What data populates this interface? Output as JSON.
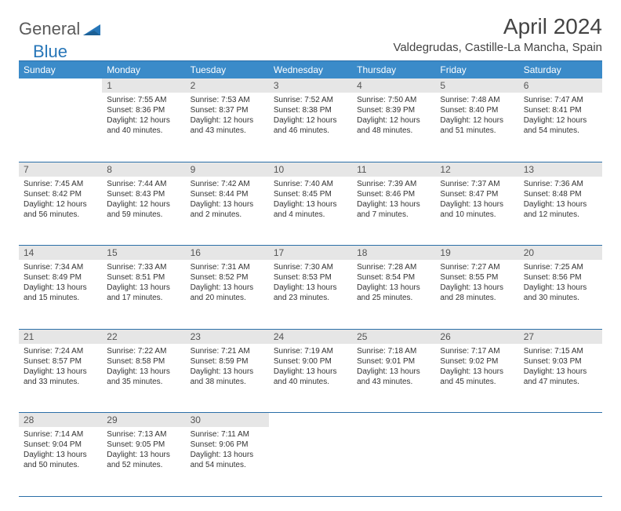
{
  "brand": {
    "part1": "General",
    "part2": "Blue"
  },
  "title": "April 2024",
  "location": "Valdegrudas, Castille-La Mancha, Spain",
  "colors": {
    "header_bg": "#3b8bc9",
    "header_text": "#ffffff",
    "daynum_bg": "#e6e6e6",
    "border": "#2b6fa8",
    "brand_blue": "#2776b8",
    "brand_gray": "#5a5a5a"
  },
  "weekdays": [
    "Sunday",
    "Monday",
    "Tuesday",
    "Wednesday",
    "Thursday",
    "Friday",
    "Saturday"
  ],
  "weeks": [
    [
      {
        "n": "",
        "sunrise": "",
        "sunset": "",
        "daylight": ""
      },
      {
        "n": "1",
        "sunrise": "7:55 AM",
        "sunset": "8:36 PM",
        "daylight": "12 hours and 40 minutes."
      },
      {
        "n": "2",
        "sunrise": "7:53 AM",
        "sunset": "8:37 PM",
        "daylight": "12 hours and 43 minutes."
      },
      {
        "n": "3",
        "sunrise": "7:52 AM",
        "sunset": "8:38 PM",
        "daylight": "12 hours and 46 minutes."
      },
      {
        "n": "4",
        "sunrise": "7:50 AM",
        "sunset": "8:39 PM",
        "daylight": "12 hours and 48 minutes."
      },
      {
        "n": "5",
        "sunrise": "7:48 AM",
        "sunset": "8:40 PM",
        "daylight": "12 hours and 51 minutes."
      },
      {
        "n": "6",
        "sunrise": "7:47 AM",
        "sunset": "8:41 PM",
        "daylight": "12 hours and 54 minutes."
      }
    ],
    [
      {
        "n": "7",
        "sunrise": "7:45 AM",
        "sunset": "8:42 PM",
        "daylight": "12 hours and 56 minutes."
      },
      {
        "n": "8",
        "sunrise": "7:44 AM",
        "sunset": "8:43 PM",
        "daylight": "12 hours and 59 minutes."
      },
      {
        "n": "9",
        "sunrise": "7:42 AM",
        "sunset": "8:44 PM",
        "daylight": "13 hours and 2 minutes."
      },
      {
        "n": "10",
        "sunrise": "7:40 AM",
        "sunset": "8:45 PM",
        "daylight": "13 hours and 4 minutes."
      },
      {
        "n": "11",
        "sunrise": "7:39 AM",
        "sunset": "8:46 PM",
        "daylight": "13 hours and 7 minutes."
      },
      {
        "n": "12",
        "sunrise": "7:37 AM",
        "sunset": "8:47 PM",
        "daylight": "13 hours and 10 minutes."
      },
      {
        "n": "13",
        "sunrise": "7:36 AM",
        "sunset": "8:48 PM",
        "daylight": "13 hours and 12 minutes."
      }
    ],
    [
      {
        "n": "14",
        "sunrise": "7:34 AM",
        "sunset": "8:49 PM",
        "daylight": "13 hours and 15 minutes."
      },
      {
        "n": "15",
        "sunrise": "7:33 AM",
        "sunset": "8:51 PM",
        "daylight": "13 hours and 17 minutes."
      },
      {
        "n": "16",
        "sunrise": "7:31 AM",
        "sunset": "8:52 PM",
        "daylight": "13 hours and 20 minutes."
      },
      {
        "n": "17",
        "sunrise": "7:30 AM",
        "sunset": "8:53 PM",
        "daylight": "13 hours and 23 minutes."
      },
      {
        "n": "18",
        "sunrise": "7:28 AM",
        "sunset": "8:54 PM",
        "daylight": "13 hours and 25 minutes."
      },
      {
        "n": "19",
        "sunrise": "7:27 AM",
        "sunset": "8:55 PM",
        "daylight": "13 hours and 28 minutes."
      },
      {
        "n": "20",
        "sunrise": "7:25 AM",
        "sunset": "8:56 PM",
        "daylight": "13 hours and 30 minutes."
      }
    ],
    [
      {
        "n": "21",
        "sunrise": "7:24 AM",
        "sunset": "8:57 PM",
        "daylight": "13 hours and 33 minutes."
      },
      {
        "n": "22",
        "sunrise": "7:22 AM",
        "sunset": "8:58 PM",
        "daylight": "13 hours and 35 minutes."
      },
      {
        "n": "23",
        "sunrise": "7:21 AM",
        "sunset": "8:59 PM",
        "daylight": "13 hours and 38 minutes."
      },
      {
        "n": "24",
        "sunrise": "7:19 AM",
        "sunset": "9:00 PM",
        "daylight": "13 hours and 40 minutes."
      },
      {
        "n": "25",
        "sunrise": "7:18 AM",
        "sunset": "9:01 PM",
        "daylight": "13 hours and 43 minutes."
      },
      {
        "n": "26",
        "sunrise": "7:17 AM",
        "sunset": "9:02 PM",
        "daylight": "13 hours and 45 minutes."
      },
      {
        "n": "27",
        "sunrise": "7:15 AM",
        "sunset": "9:03 PM",
        "daylight": "13 hours and 47 minutes."
      }
    ],
    [
      {
        "n": "28",
        "sunrise": "7:14 AM",
        "sunset": "9:04 PM",
        "daylight": "13 hours and 50 minutes."
      },
      {
        "n": "29",
        "sunrise": "7:13 AM",
        "sunset": "9:05 PM",
        "daylight": "13 hours and 52 minutes."
      },
      {
        "n": "30",
        "sunrise": "7:11 AM",
        "sunset": "9:06 PM",
        "daylight": "13 hours and 54 minutes."
      },
      {
        "n": "",
        "sunrise": "",
        "sunset": "",
        "daylight": ""
      },
      {
        "n": "",
        "sunrise": "",
        "sunset": "",
        "daylight": ""
      },
      {
        "n": "",
        "sunrise": "",
        "sunset": "",
        "daylight": ""
      },
      {
        "n": "",
        "sunrise": "",
        "sunset": "",
        "daylight": ""
      }
    ]
  ],
  "labels": {
    "sunrise": "Sunrise:",
    "sunset": "Sunset:",
    "daylight": "Daylight:"
  }
}
